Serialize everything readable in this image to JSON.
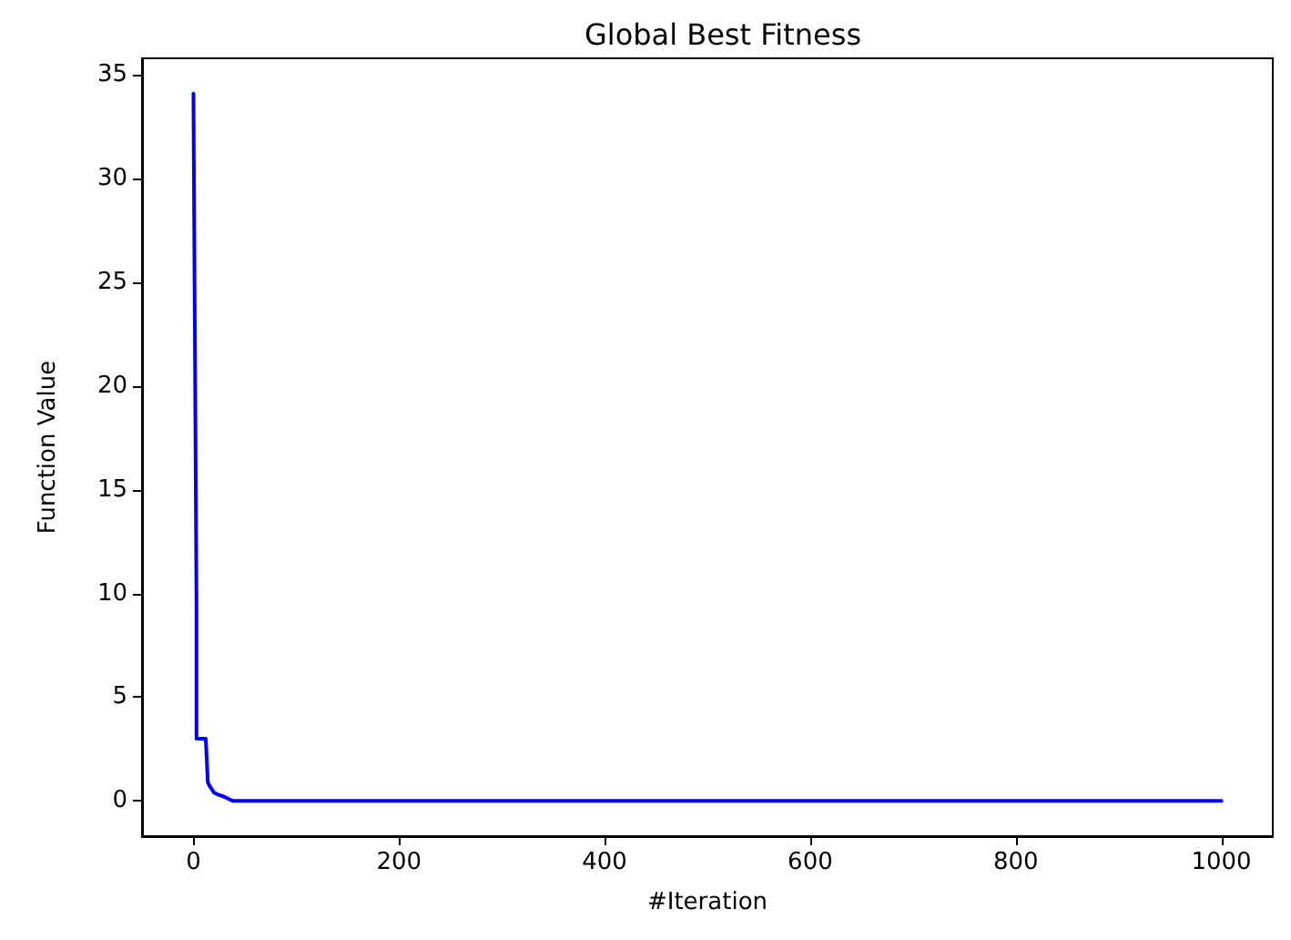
{
  "chart_data": {
    "type": "line",
    "title": "Global Best Fitness",
    "xlabel": "#Iteration",
    "ylabel": "Function Value",
    "xlim": [
      -50,
      1050
    ],
    "xticks": [
      0,
      200,
      400,
      600,
      800,
      1000
    ],
    "ylim": [
      -1.7,
      35.8
    ],
    "yticks": [
      0,
      5,
      10,
      15,
      20,
      25,
      30,
      35
    ],
    "grid": false,
    "marker": "none",
    "line_style": "solid",
    "series": [
      {
        "color": "#0000ff",
        "x": [
          0,
          3,
          3,
          12,
          14,
          16,
          20,
          24,
          30,
          38,
          1000
        ],
        "values": [
          34.1,
          9.3,
          3,
          3,
          0.9,
          0.7,
          0.4,
          0.3,
          0.2,
          0,
          0
        ]
      }
    ]
  }
}
